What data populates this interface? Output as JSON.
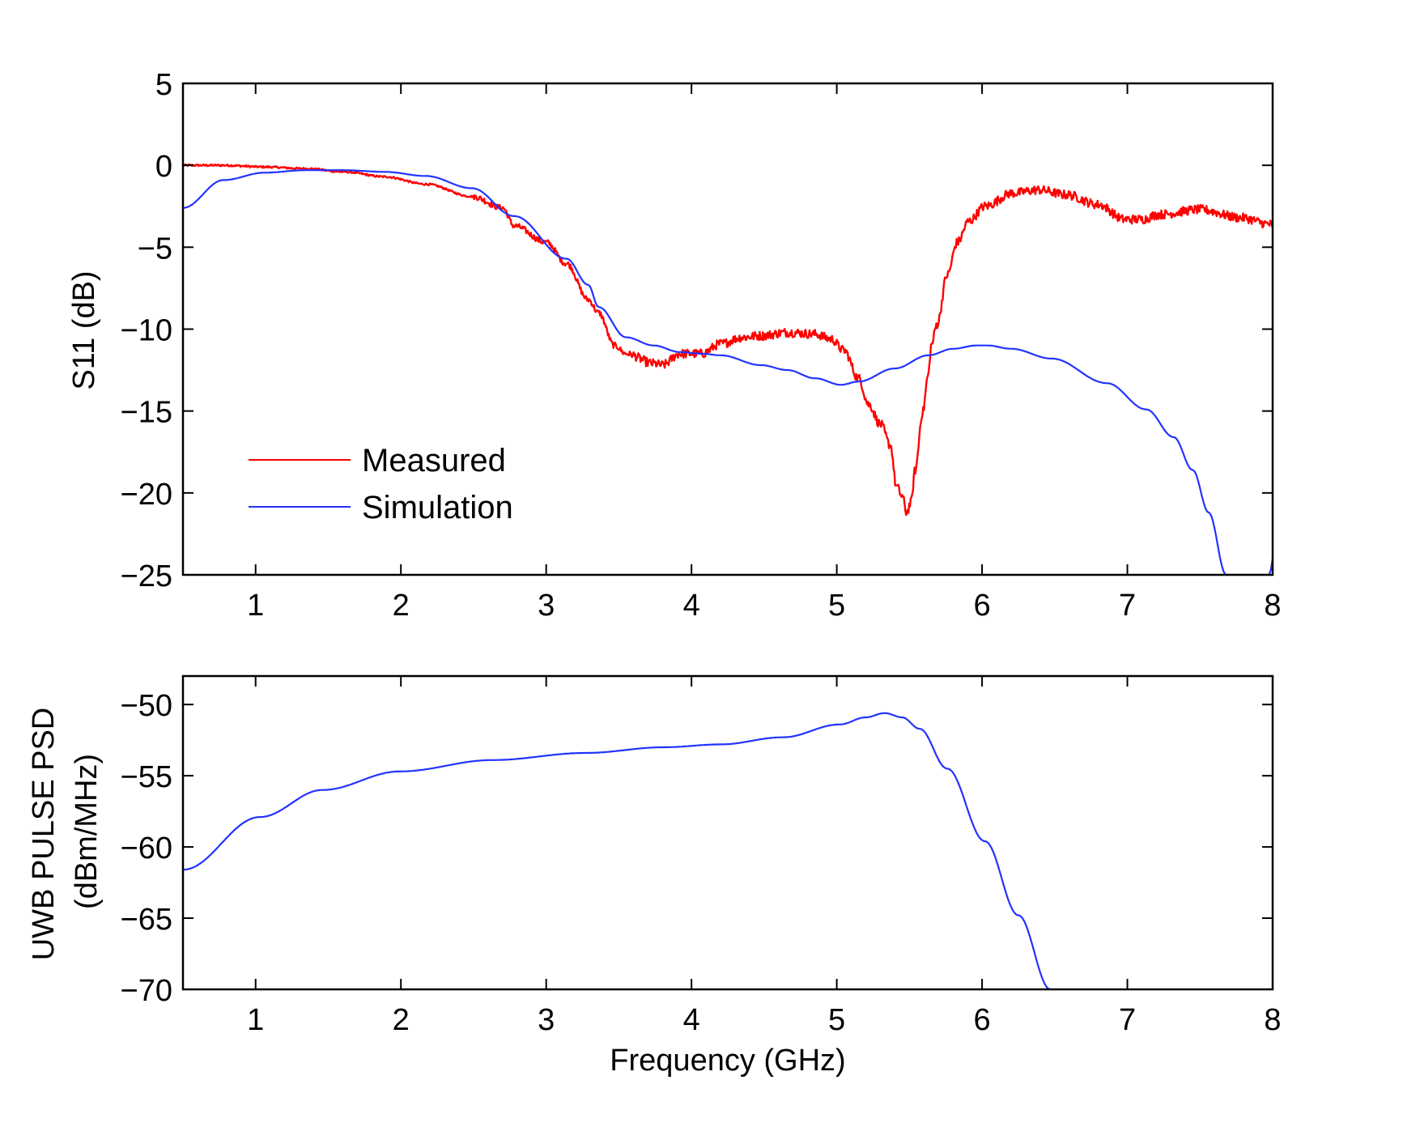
{
  "chart_data": [
    {
      "type": "line",
      "title": "",
      "xlabel": "",
      "ylabel": "S11 (dB)",
      "xlim": [
        0.5,
        8
      ],
      "ylim": [
        -25,
        5
      ],
      "xticks": [
        1,
        2,
        3,
        4,
        5,
        6,
        7,
        8
      ],
      "yticks": [
        5,
        0,
        -5,
        -10,
        -15,
        -20,
        -25
      ],
      "xtick_labels": [
        "1",
        "2",
        "3",
        "4",
        "5",
        "6",
        "7",
        "8"
      ],
      "ytick_labels": [
        "5",
        "0",
        "−5",
        "−10",
        "−15",
        "−20",
        "−25"
      ],
      "grid": false,
      "legend": {
        "position": "lower-left",
        "entries": [
          "Measured",
          "Simulation"
        ]
      },
      "series": [
        {
          "name": "Measured",
          "color": "#ff0000",
          "x": [
            0.5,
            0.78,
            1.06,
            1.34,
            1.61,
            1.89,
            2.17,
            2.49,
            2.7,
            2.78,
            3.0,
            3.14,
            3.29,
            3.36,
            3.47,
            3.55,
            3.74,
            3.8,
            3.92,
            4.07,
            4.2,
            4.35,
            4.48,
            4.66,
            4.85,
            4.96,
            5.05,
            5.15,
            5.22,
            5.3,
            5.37,
            5.41,
            5.45,
            5.48,
            5.51,
            5.54,
            5.59,
            5.63,
            5.65,
            5.69,
            5.76,
            5.83,
            5.91,
            6.02,
            6.21,
            6.39,
            6.58,
            6.8,
            6.98,
            7.1,
            7.22,
            7.5,
            7.78,
            7.99,
            8.0
          ],
          "y": [
            0.0,
            0.0,
            -0.1,
            -0.2,
            -0.4,
            -0.7,
            -1.15,
            -1.9,
            -2.6,
            -3.7,
            -4.7,
            -6.0,
            -8.2,
            -9.0,
            -11.0,
            -11.5,
            -12.1,
            -12.2,
            -11.5,
            -11.5,
            -10.9,
            -10.5,
            -10.4,
            -10.2,
            -10.3,
            -10.6,
            -11.3,
            -13.0,
            -14.6,
            -15.8,
            -17.1,
            -19.6,
            -20.2,
            -21.2,
            -20.6,
            -18.6,
            -15.1,
            -12.8,
            -11.0,
            -9.7,
            -6.7,
            -4.7,
            -3.4,
            -2.5,
            -1.7,
            -1.5,
            -1.8,
            -2.4,
            -3.3,
            -3.3,
            -3.0,
            -2.7,
            -3.2,
            -3.6,
            -4.0
          ]
        },
        {
          "name": "Simulation",
          "color": "#2233ff",
          "x": [
            0.5,
            0.78,
            1.06,
            1.34,
            1.61,
            1.89,
            2.17,
            2.49,
            2.78,
            3.14,
            3.29,
            3.36,
            3.55,
            3.74,
            3.92,
            4.07,
            4.2,
            4.48,
            4.66,
            4.85,
            5.03,
            5.15,
            5.4,
            5.63,
            5.8,
            5.96,
            6.04,
            6.2,
            6.48,
            6.86,
            7.13,
            7.32,
            7.45,
            7.56,
            7.68,
            7.98,
            8.0
          ],
          "y": [
            -2.6,
            -0.9,
            -0.45,
            -0.3,
            -0.3,
            -0.4,
            -0.65,
            -1.4,
            -3.1,
            -5.7,
            -7.3,
            -8.65,
            -10.5,
            -11.0,
            -11.4,
            -11.5,
            -11.6,
            -12.2,
            -12.5,
            -13.0,
            -13.4,
            -13.2,
            -12.4,
            -11.6,
            -11.2,
            -11.0,
            -11.0,
            -11.2,
            -11.8,
            -13.3,
            -14.9,
            -16.6,
            -18.6,
            -21.2,
            -25.0,
            -25.0,
            -24.0
          ]
        }
      ]
    },
    {
      "type": "line",
      "title": "",
      "xlabel": "Frequency (GHz)",
      "ylabel": [
        "UWB PULSE PSD",
        "(dBm/MHz)"
      ],
      "xlim": [
        0.5,
        8
      ],
      "ylim": [
        -70,
        -48
      ],
      "xticks": [
        1,
        2,
        3,
        4,
        5,
        6,
        7,
        8
      ],
      "yticks": [
        -50,
        -55,
        -60,
        -65,
        -70
      ],
      "xtick_labels": [
        "1",
        "2",
        "3",
        "4",
        "5",
        "6",
        "7",
        "8"
      ],
      "ytick_labels": [
        "−50",
        "−55",
        "−60",
        "−65",
        "−70"
      ],
      "grid": false,
      "series": [
        {
          "name": "UWB pulse PSD",
          "color": "#2233ff",
          "x": [
            0.5,
            1.03,
            1.46,
            1.99,
            2.63,
            3.27,
            3.81,
            4.2,
            4.63,
            5.02,
            5.2,
            5.33,
            5.45,
            5.57,
            5.76,
            6.02,
            6.25,
            6.47
          ],
          "y": [
            -61.6,
            -57.9,
            -56.0,
            -54.7,
            -53.9,
            -53.4,
            -53.0,
            -52.8,
            -52.3,
            -51.4,
            -50.9,
            -50.6,
            -50.9,
            -51.7,
            -54.5,
            -59.6,
            -64.8,
            -70.0
          ]
        }
      ]
    }
  ]
}
